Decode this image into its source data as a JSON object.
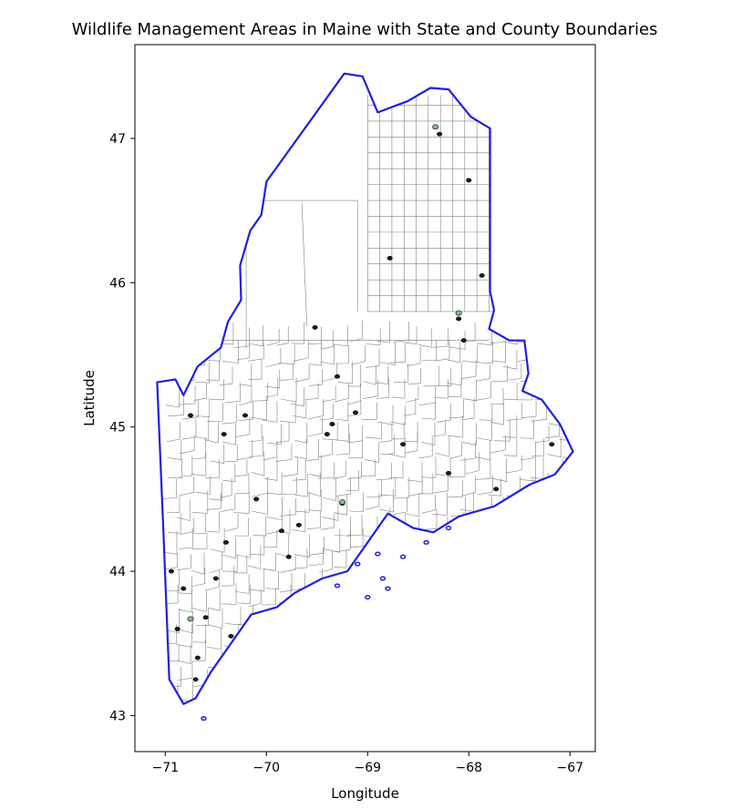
{
  "title": "Wildlife Management Areas in Maine with State and County Boundaries",
  "xlabel": "Longitude",
  "ylabel": "Latitude",
  "colors": {
    "state_boundary": "#1f1fe0",
    "county_lines": "#808080",
    "wma_fill": "#1a1a1a",
    "wma_green": "#7fbf7f"
  },
  "chart_data": {
    "type": "map",
    "xlim": [
      -71.3,
      -66.75
    ],
    "ylim": [
      42.75,
      47.65
    ],
    "xticks": [
      -71,
      -70,
      -69,
      -68,
      -67
    ],
    "xtick_labels": [
      "−71",
      "−70",
      "−69",
      "−68",
      "−67"
    ],
    "yticks": [
      43,
      44,
      45,
      46,
      47
    ],
    "ytick_labels": [
      "43",
      "44",
      "45",
      "46",
      "47"
    ],
    "state_outline": [
      [
        -71.08,
        45.31
      ],
      [
        -70.9,
        45.33
      ],
      [
        -70.82,
        45.22
      ],
      [
        -70.68,
        45.42
      ],
      [
        -70.45,
        45.55
      ],
      [
        -70.38,
        45.73
      ],
      [
        -70.25,
        45.88
      ],
      [
        -70.26,
        46.12
      ],
      [
        -70.16,
        46.36
      ],
      [
        -70.05,
        46.47
      ],
      [
        -70.0,
        46.7
      ],
      [
        -69.23,
        47.45
      ],
      [
        -69.05,
        47.43
      ],
      [
        -68.9,
        47.18
      ],
      [
        -68.6,
        47.26
      ],
      [
        -68.38,
        47.35
      ],
      [
        -68.2,
        47.34
      ],
      [
        -67.98,
        47.15
      ],
      [
        -67.79,
        47.07
      ],
      [
        -67.79,
        45.94
      ],
      [
        -67.75,
        45.81
      ],
      [
        -67.8,
        45.68
      ],
      [
        -67.6,
        45.6
      ],
      [
        -67.45,
        45.6
      ],
      [
        -67.41,
        45.37
      ],
      [
        -67.47,
        45.25
      ],
      [
        -67.28,
        45.19
      ],
      [
        -67.1,
        45.02
      ],
      [
        -66.97,
        44.83
      ],
      [
        -67.15,
        44.67
      ],
      [
        -67.4,
        44.6
      ],
      [
        -67.75,
        44.45
      ],
      [
        -68.1,
        44.38
      ],
      [
        -68.35,
        44.27
      ],
      [
        -68.55,
        44.3
      ],
      [
        -68.8,
        44.4
      ],
      [
        -69.0,
        44.2
      ],
      [
        -69.2,
        44.0
      ],
      [
        -69.45,
        43.95
      ],
      [
        -69.72,
        43.85
      ],
      [
        -69.9,
        43.75
      ],
      [
        -70.15,
        43.7
      ],
      [
        -70.3,
        43.55
      ],
      [
        -70.55,
        43.3
      ],
      [
        -70.7,
        43.12
      ],
      [
        -70.82,
        43.08
      ],
      [
        -70.96,
        43.25
      ],
      [
        -70.98,
        43.6
      ],
      [
        -71.02,
        44.3
      ],
      [
        -71.08,
        45.31
      ]
    ],
    "wma_points": [
      [
        -68.29,
        47.03
      ],
      [
        -67.87,
        46.05
      ],
      [
        -68.1,
        45.75
      ],
      [
        -68.05,
        45.6
      ],
      [
        -69.52,
        45.69
      ],
      [
        -69.3,
        45.35
      ],
      [
        -70.75,
        45.08
      ],
      [
        -70.21,
        45.08
      ],
      [
        -69.12,
        45.1
      ],
      [
        -69.35,
        45.02
      ],
      [
        -68.65,
        44.88
      ],
      [
        -68.2,
        44.68
      ],
      [
        -67.73,
        44.57
      ],
      [
        -67.18,
        44.88
      ],
      [
        -70.94,
        44.0
      ],
      [
        -70.82,
        43.88
      ],
      [
        -70.4,
        44.2
      ],
      [
        -70.6,
        43.68
      ],
      [
        -70.88,
        43.6
      ],
      [
        -70.35,
        43.55
      ],
      [
        -70.7,
        43.25
      ],
      [
        -69.68,
        44.32
      ],
      [
        -70.1,
        44.5
      ],
      [
        -69.85,
        44.28
      ],
      [
        -69.25,
        44.47
      ],
      [
        -68.0,
        46.71
      ],
      [
        -68.78,
        46.17
      ],
      [
        -69.4,
        44.95
      ],
      [
        -70.42,
        44.95
      ],
      [
        -70.5,
        43.95
      ],
      [
        -69.78,
        44.1
      ],
      [
        -70.68,
        43.4
      ]
    ],
    "wma_green_points": [
      [
        -68.33,
        47.08
      ],
      [
        -68.1,
        45.79
      ],
      [
        -69.25,
        44.48
      ],
      [
        -70.75,
        43.67
      ]
    ]
  }
}
